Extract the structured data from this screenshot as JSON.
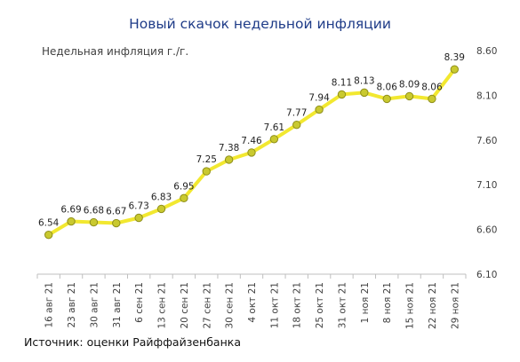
{
  "title": "Новый скачок недельной инфляции",
  "subtitle": "Недельная инфляция г./г.",
  "source": "Источник: оценки Райффайзенбанка",
  "colors": {
    "line": "#f2e830",
    "marker_fill": "#c9c92f",
    "marker_stroke": "#8f8f1a",
    "title": "#1f3c88"
  },
  "chart_data": {
    "type": "line",
    "title": "Новый скачок недельной инфляции",
    "ylabel": "Недельная инфляция г./г.",
    "categories": [
      "16 авг 21",
      "23 авг 21",
      "30 авг 21",
      "31 авг 21",
      "6 сен 21",
      "13 сен 21",
      "20 сен 21",
      "27 сен 21",
      "30 сен 21",
      "4 окт 21",
      "11 окт 21",
      "18 окт 21",
      "25 окт 21",
      "31 окт 21",
      "1 ноя 21",
      "8 ноя 21",
      "15 ноя 21",
      "22 ноя 21",
      "29 ноя 21"
    ],
    "values": [
      6.54,
      6.69,
      6.68,
      6.67,
      6.73,
      6.83,
      6.95,
      7.25,
      7.38,
      7.46,
      7.61,
      7.77,
      7.94,
      8.11,
      8.13,
      8.06,
      8.09,
      8.06,
      8.39
    ],
    "data_labels": [
      "6.54",
      "6.69",
      "6.68",
      "6.67",
      "6.73",
      "6.83",
      "6.95",
      "7.25",
      "7.38",
      "7.46",
      "7.61",
      "7.77",
      "7.94",
      "8.11",
      "8.13",
      "8.06",
      "8.09",
      "8.06",
      "8.39"
    ],
    "ylim": [
      6.1,
      8.6
    ],
    "yticks": [
      "6.10",
      "6.60",
      "7.10",
      "7.60",
      "8.10",
      "8.60"
    ],
    "y_axis_side": "right",
    "grid": false,
    "legend": false
  }
}
